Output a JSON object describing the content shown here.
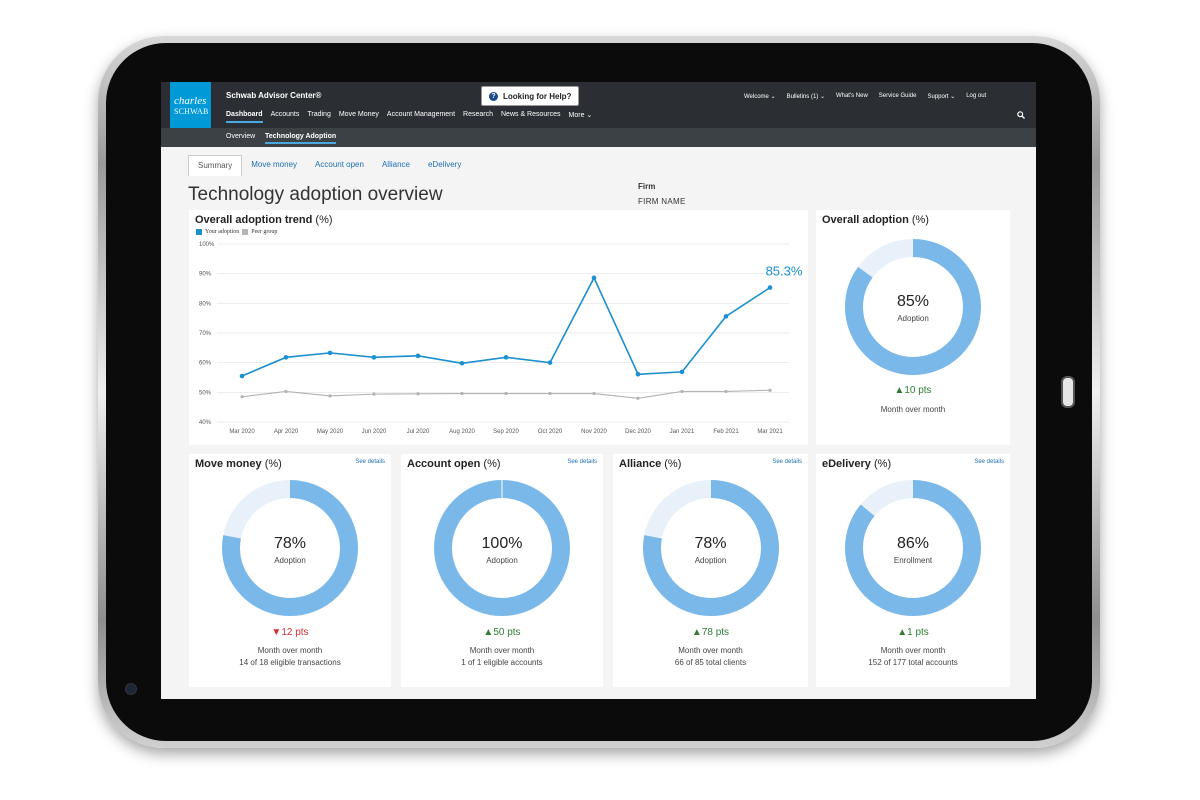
{
  "header": {
    "logo_line1": "charles",
    "logo_line2": "SCHWAB",
    "brand": "Schwab Advisor Center®",
    "help_label": "Looking for Help?",
    "nav": [
      "Dashboard",
      "Accounts",
      "Trading",
      "Move Money",
      "Account Management",
      "Research",
      "News & Resources",
      "More ⌄"
    ],
    "right_nav": [
      "Welcome ⌄",
      "Bulletins (1) ⌄",
      "What's New",
      "Service Guide",
      "Support ⌄",
      "Log out"
    ]
  },
  "subnav": [
    "Overview",
    "Technology Adoption"
  ],
  "tabs": [
    "Summary",
    "Move money",
    "Account open",
    "Alliance",
    "eDelivery"
  ],
  "page": {
    "title": "Technology adoption overview",
    "firm_label": "Firm",
    "firm_name": "FIRM NAME"
  },
  "trend": {
    "title": "Overall adoption trend",
    "unit": "(%)",
    "legend_your": "Your adoption",
    "legend_peer": "Peer group",
    "callout": "85.3%"
  },
  "colors": {
    "primary": "#1a8fd1",
    "peer": "#b3b3b3",
    "donut": "#7ab8ea",
    "up": "#2e7d32",
    "down": "#d32f2f"
  },
  "chart_data": {
    "type": "line",
    "title": "Overall adoption trend (%)",
    "x": [
      "Mar 2020",
      "Apr 2020",
      "May 2020",
      "Jun 2020",
      "Jul 2020",
      "Aug 2020",
      "Sep 2020",
      "Oct 2020",
      "Nov 2020",
      "Dec 2020",
      "Jan 2021",
      "Feb 2021",
      "Mar 2021"
    ],
    "y_ticks": [
      "40%",
      "50%",
      "60%",
      "70%",
      "80%",
      "90%",
      "100%"
    ],
    "ylim": [
      40,
      100
    ],
    "series": [
      {
        "name": "Your adoption",
        "values": [
          55.5,
          61.8,
          63.3,
          61.8,
          62.3,
          59.8,
          61.8,
          60.0,
          88.6,
          56.1,
          56.9,
          75.6,
          85.3
        ]
      },
      {
        "name": "Peer group",
        "values": [
          48.5,
          50.3,
          48.8,
          49.4,
          49.5,
          49.6,
          49.6,
          49.6,
          49.6,
          48.0,
          50.3,
          50.3,
          50.7
        ]
      }
    ],
    "grid": "horizontal",
    "legend": "top-left"
  },
  "overall": {
    "title": "Overall adoption",
    "unit": "(%)",
    "pct": "85%",
    "pct_value": 85,
    "label": "Adoption",
    "delta": "▲10 pts",
    "direction": "up",
    "mom": "Month over month"
  },
  "cards": [
    {
      "title": "Move money",
      "unit": "(%)",
      "see": "See details",
      "pct": "78%",
      "pct_value": 78,
      "label": "Adoption",
      "delta": "▼12 pts",
      "direction": "down",
      "mom": "Month over month",
      "extra": "14 of 18 eligible transactions"
    },
    {
      "title": "Account open",
      "unit": "(%)",
      "see": "See details",
      "pct": "100%",
      "pct_value": 100,
      "label": "Adoption",
      "delta": "▲50 pts",
      "direction": "up",
      "mom": "Month over month",
      "extra": "1 of 1 eligible accounts"
    },
    {
      "title": "Alliance",
      "unit": "(%)",
      "see": "See details",
      "pct": "78%",
      "pct_value": 78,
      "label": "Adoption",
      "delta": "▲78 pts",
      "direction": "up",
      "mom": "Month over month",
      "extra": "66 of 85 total clients"
    },
    {
      "title": "eDelivery",
      "unit": "(%)",
      "see": "See details",
      "pct": "86%",
      "pct_value": 86,
      "label": "Enrollment",
      "delta": "▲1 pts",
      "direction": "up",
      "mom": "Month over month",
      "extra": "152 of 177 total accounts"
    }
  ]
}
